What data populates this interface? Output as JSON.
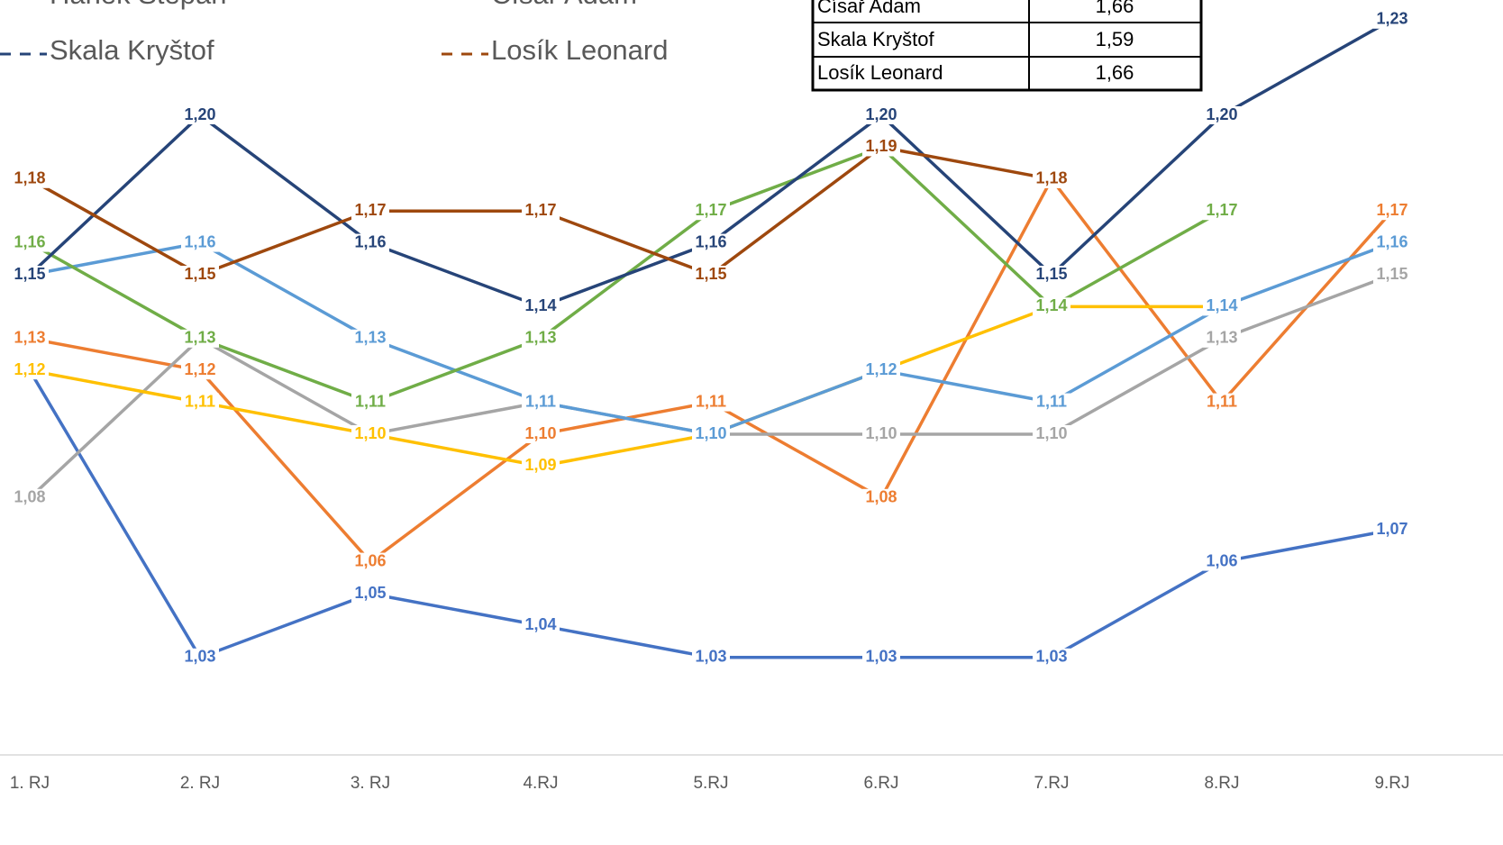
{
  "chart_data": {
    "type": "line",
    "categories": [
      "1. RJ",
      "2. RJ",
      "3. RJ",
      "4.RJ",
      "5.RJ",
      "6.RJ",
      "7.RJ",
      "8.RJ",
      "9.RJ"
    ],
    "ylim": [
      1.0,
      1.25
    ],
    "series": [
      {
        "color": "#4472c4",
        "values": [
          1.12,
          1.03,
          1.05,
          1.04,
          1.03,
          1.03,
          1.03,
          1.06,
          1.07
        ],
        "value_labels": [
          null,
          "1,03",
          "1,05",
          "1,04",
          "1,03",
          "1,03",
          "1,03",
          "1,06",
          "1,07"
        ]
      },
      {
        "color": "#ed7d31",
        "values": [
          1.13,
          1.12,
          1.06,
          1.1,
          1.11,
          1.08,
          1.18,
          1.11,
          1.17
        ],
        "value_labels": [
          "1,13",
          "1,12",
          "1,06",
          "1,10",
          "1,11",
          "1,08",
          "1,18",
          "1,11",
          "1,17"
        ]
      },
      {
        "color": "#a5a5a5",
        "values": [
          1.08,
          1.13,
          1.1,
          1.11,
          1.1,
          1.1,
          1.1,
          1.13,
          1.15
        ],
        "value_labels": [
          "1,08",
          null,
          null,
          "1,11",
          null,
          "1,10",
          "1,10",
          "1,13",
          "1,15"
        ]
      },
      {
        "color": "#ffc000",
        "values": [
          1.12,
          1.11,
          1.1,
          1.09,
          1.1,
          1.12,
          1.14,
          1.14,
          null
        ],
        "value_labels": [
          "1,12",
          "1,11",
          "1,10",
          "1,09",
          null,
          null,
          "1,14",
          null,
          null
        ]
      },
      {
        "name": "Hanek Štěpán",
        "color": "#5b9bd5",
        "values": [
          1.15,
          1.16,
          1.13,
          1.11,
          1.1,
          1.12,
          1.11,
          1.14,
          1.16
        ],
        "value_labels": [
          "1,15",
          "1,16",
          "1,13",
          "1,11",
          "1,10",
          "1,12",
          "1,11",
          "1,14",
          "1,16"
        ]
      },
      {
        "name": "Císař Adam",
        "color": "#70ad47",
        "values": [
          1.16,
          1.13,
          1.11,
          1.13,
          1.17,
          1.19,
          1.14,
          1.17,
          null
        ],
        "value_labels": [
          "1,16",
          "1,13",
          "1,11",
          "1,13",
          "1,17",
          "1,19",
          "1,14",
          "1,17",
          null
        ]
      },
      {
        "name": "Skala Kryštof",
        "color": "#264478",
        "values": [
          1.15,
          1.2,
          1.16,
          1.14,
          1.16,
          1.2,
          1.15,
          1.2,
          1.23
        ],
        "value_labels": [
          "1,15",
          "1,20",
          "1,16",
          "1,14",
          "1,16",
          "1,20",
          "1,15",
          "1,20",
          "1,23"
        ]
      },
      {
        "name": "Losík Leonard",
        "color": "#9e480e",
        "values": [
          1.18,
          1.15,
          1.17,
          1.17,
          1.15,
          1.19,
          1.18,
          null,
          null
        ],
        "value_labels": [
          "1,18",
          "1,15",
          "1,17",
          "1,17",
          "1,15",
          "1,19",
          "1,18",
          null,
          null
        ]
      }
    ]
  },
  "table": {
    "rows": [
      [
        "Císař Adam",
        "1,66"
      ],
      [
        "Skala Kryštof",
        "1,59"
      ],
      [
        "Losík Leonard",
        "1,66"
      ]
    ]
  }
}
